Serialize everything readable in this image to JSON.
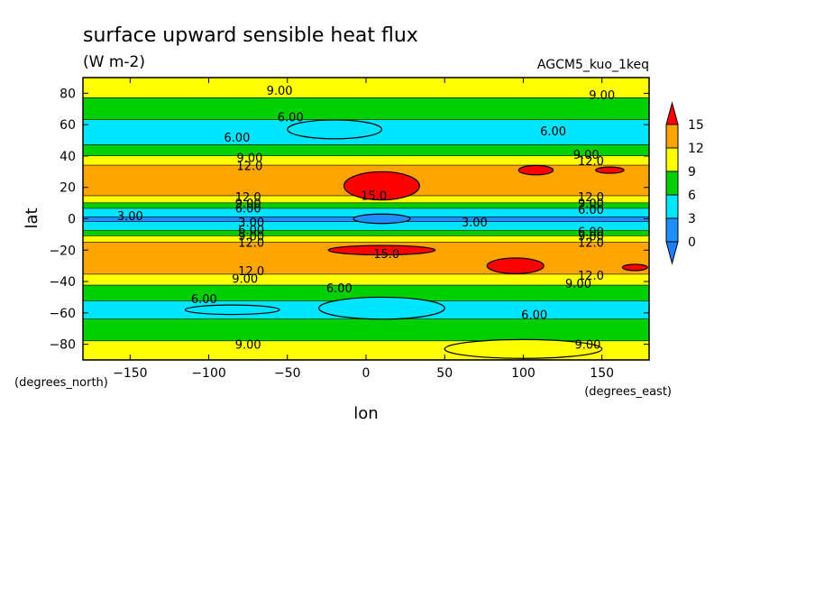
{
  "chart_data": {
    "type": "heatmap",
    "title": "surface upward sensible heat flux",
    "subtitle": "(W m-2)",
    "annotation": "AGCM5_kuo_1keq",
    "xlabel": "lon",
    "ylabel": "lat",
    "x_unit": "(degrees_east)",
    "y_unit": "(degrees_north)",
    "xlim": [
      -180,
      180
    ],
    "ylim": [
      -90,
      90
    ],
    "x_ticks": [
      -150,
      -100,
      -50,
      0,
      50,
      100,
      150
    ],
    "y_ticks": [
      80,
      60,
      40,
      20,
      0,
      -20,
      -40,
      -60,
      -80
    ],
    "x_tick_labels": [
      "−150",
      "−100",
      "−50",
      "0",
      "50",
      "100",
      "150"
    ],
    "y_tick_labels": [
      "80",
      "60",
      "40",
      "20",
      "0",
      "−20",
      "−40",
      "−60",
      "−80"
    ],
    "levels": [
      0,
      3,
      6,
      9,
      12,
      15
    ],
    "level_labels": [
      "0",
      "3",
      "6",
      "9",
      "12",
      "15"
    ],
    "level_colors": [
      "#1f8fff",
      "#00e5ff",
      "#00d000",
      "#ffff00",
      "#ffa500",
      "#ff0000"
    ],
    "underflow_color": "#1f7fff",
    "overflow_color": "#ff0000",
    "zonal_profile": {
      "lat": [
        90,
        84,
        78,
        72,
        64,
        56,
        48,
        42,
        38,
        32,
        24,
        16,
        12,
        8,
        4,
        0,
        -4,
        -8,
        -12,
        -16,
        -24,
        -32,
        -38,
        -44,
        -50,
        -56,
        -62,
        -70,
        -78,
        -84,
        -90
      ],
      "value": [
        9.5,
        10.5,
        9.2,
        7.5,
        6.2,
        4.5,
        5.8,
        8.0,
        10.5,
        12.8,
        13.8,
        12.8,
        10.5,
        7.0,
        4.0,
        2.5,
        3.5,
        6.5,
        10.0,
        12.8,
        13.8,
        13.0,
        11.0,
        8.0,
        6.5,
        5.0,
        5.5,
        7.5,
        9.0,
        9.5,
        10.5
      ]
    },
    "contour_labels": [
      {
        "text": "9.00",
        "lon": -55,
        "lat": 82
      },
      {
        "text": "9.00",
        "lon": 150,
        "lat": 79
      },
      {
        "text": "6.00",
        "lon": -48,
        "lat": 65
      },
      {
        "text": "6.00",
        "lon": -82,
        "lat": 52
      },
      {
        "text": "6.00",
        "lon": 119,
        "lat": 56
      },
      {
        "text": "9.00",
        "lon": -74,
        "lat": 39
      },
      {
        "text": "12.0",
        "lon": -74,
        "lat": 34
      },
      {
        "text": "9.00",
        "lon": 140,
        "lat": 41
      },
      {
        "text": "12.0",
        "lon": 143,
        "lat": 37
      },
      {
        "text": "15.0",
        "lon": 5,
        "lat": 15
      },
      {
        "text": "12.0",
        "lon": -75,
        "lat": 14
      },
      {
        "text": "9.00",
        "lon": -75,
        "lat": 10
      },
      {
        "text": "6.00",
        "lon": -75,
        "lat": 7
      },
      {
        "text": "12.0",
        "lon": 143,
        "lat": 14
      },
      {
        "text": "9.00",
        "lon": 143,
        "lat": 10
      },
      {
        "text": "6.00",
        "lon": 143,
        "lat": 6
      },
      {
        "text": "3.00",
        "lon": -150,
        "lat": 2
      },
      {
        "text": "3.00",
        "lon": -73,
        "lat": -2
      },
      {
        "text": "3.00",
        "lon": 69,
        "lat": -2
      },
      {
        "text": "6.00",
        "lon": -73,
        "lat": -7
      },
      {
        "text": "9.00",
        "lon": -73,
        "lat": -11
      },
      {
        "text": "12.0",
        "lon": -73,
        "lat": -15
      },
      {
        "text": "6.00",
        "lon": 143,
        "lat": -8
      },
      {
        "text": "9.00",
        "lon": 143,
        "lat": -11
      },
      {
        "text": "12.0",
        "lon": 143,
        "lat": -15
      },
      {
        "text": "15.0",
        "lon": 13,
        "lat": -22
      },
      {
        "text": "12.0",
        "lon": -73,
        "lat": -33
      },
      {
        "text": "9.00",
        "lon": -77,
        "lat": -38
      },
      {
        "text": "12.0",
        "lon": 143,
        "lat": -36
      },
      {
        "text": "9.00",
        "lon": 135,
        "lat": -41
      },
      {
        "text": "6.00",
        "lon": -103,
        "lat": -51
      },
      {
        "text": "6.00",
        "lon": -17,
        "lat": -44
      },
      {
        "text": "6.00",
        "lon": 107,
        "lat": -61
      },
      {
        "text": "9.00",
        "lon": -75,
        "lat": -80
      },
      {
        "text": "9.00",
        "lon": 141,
        "lat": -80
      }
    ],
    "blobs": [
      {
        "value": 15,
        "lon": 10,
        "lat": 21,
        "half_lon": 24,
        "half_lat": 9
      },
      {
        "value": 15,
        "lon": 108,
        "lat": 31,
        "half_lon": 11,
        "half_lat": 3
      },
      {
        "value": 15,
        "lon": 155,
        "lat": 31,
        "half_lon": 9,
        "half_lat": 2
      },
      {
        "value": 15,
        "lon": 10,
        "lat": -20,
        "half_lon": 34,
        "half_lat": 3
      },
      {
        "value": 15,
        "lon": 95,
        "lat": -30,
        "half_lon": 18,
        "half_lat": 5
      },
      {
        "value": 15,
        "lon": 171,
        "lat": -31,
        "half_lon": 8,
        "half_lat": 2
      },
      {
        "value": 0,
        "lon": 10,
        "lat": 0,
        "half_lon": 18,
        "half_lat": 3
      },
      {
        "value": 3,
        "lon": 10,
        "lat": -57,
        "half_lon": 40,
        "half_lat": 7
      },
      {
        "value": 3,
        "lon": -85,
        "lat": -58,
        "half_lon": 30,
        "half_lat": 3
      },
      {
        "value": 3,
        "lon": -20,
        "lat": 57,
        "half_lon": 30,
        "half_lat": 6
      },
      {
        "value": 10.5,
        "lon": 100,
        "lat": -83,
        "half_lon": 50,
        "half_lat": 6
      }
    ]
  }
}
